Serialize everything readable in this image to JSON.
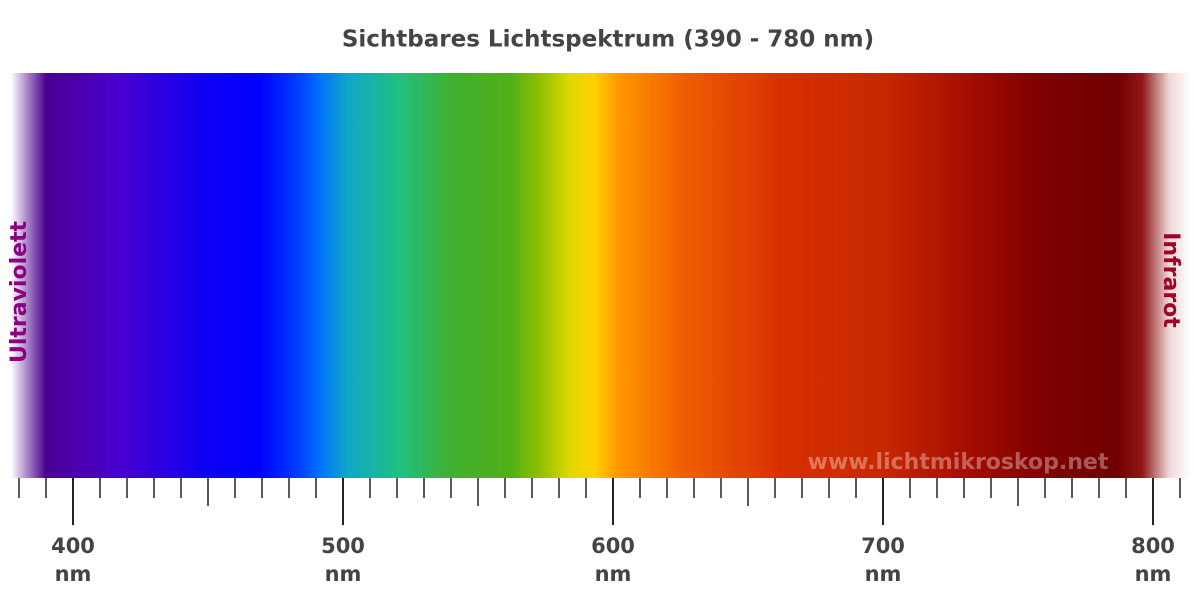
{
  "chart_data": {
    "type": "spectrum",
    "title": "Sichtbares Lichtspektrum (390 - 780 nm)",
    "left_label": "Ultraviolett",
    "right_label": "Infrarot",
    "watermark": "www.lichtmikroskop.net",
    "unit": "nm",
    "xlim": [
      377,
      814
    ],
    "xticks": [
      400,
      500,
      600,
      700,
      800
    ],
    "minor_xticks": [
      380,
      390,
      410,
      420,
      430,
      440,
      450,
      460,
      470,
      480,
      490,
      510,
      520,
      530,
      540,
      550,
      560,
      570,
      580,
      590,
      610,
      620,
      630,
      640,
      650,
      660,
      670,
      680,
      690,
      710,
      720,
      730,
      740,
      750,
      760,
      770,
      780,
      790,
      810
    ],
    "spectrum_stops": [
      {
        "value": 377,
        "color": "#ffffff"
      },
      {
        "value": 382,
        "color": "#b89ad0"
      },
      {
        "value": 390,
        "color": "#4a0090"
      },
      {
        "value": 417,
        "color": "#4a00d0"
      },
      {
        "value": 447,
        "color": "#1000f0"
      },
      {
        "value": 469,
        "color": "#0000ff"
      },
      {
        "value": 484,
        "color": "#0040ff"
      },
      {
        "value": 491,
        "color": "#0070ff"
      },
      {
        "value": 502,
        "color": "#10a8c8"
      },
      {
        "value": 521,
        "color": "#20c080"
      },
      {
        "value": 540,
        "color": "#40b030"
      },
      {
        "value": 562,
        "color": "#50b018"
      },
      {
        "value": 573,
        "color": "#90c000"
      },
      {
        "value": 584,
        "color": "#e0d800"
      },
      {
        "value": 593,
        "color": "#ffd000"
      },
      {
        "value": 602,
        "color": "#ff9800"
      },
      {
        "value": 625,
        "color": "#f06000"
      },
      {
        "value": 662,
        "color": "#d83000"
      },
      {
        "value": 699,
        "color": "#c82800"
      },
      {
        "value": 728,
        "color": "#a81000"
      },
      {
        "value": 758,
        "color": "#800000"
      },
      {
        "value": 787,
        "color": "#700000"
      },
      {
        "value": 796,
        "color": "#901818"
      },
      {
        "value": 806,
        "color": "#f0d8d8"
      },
      {
        "value": 814,
        "color": "#ffffff"
      }
    ],
    "left_label_color": "#8b0080",
    "right_label_color": "#a0002a",
    "text_color": "#444444"
  }
}
